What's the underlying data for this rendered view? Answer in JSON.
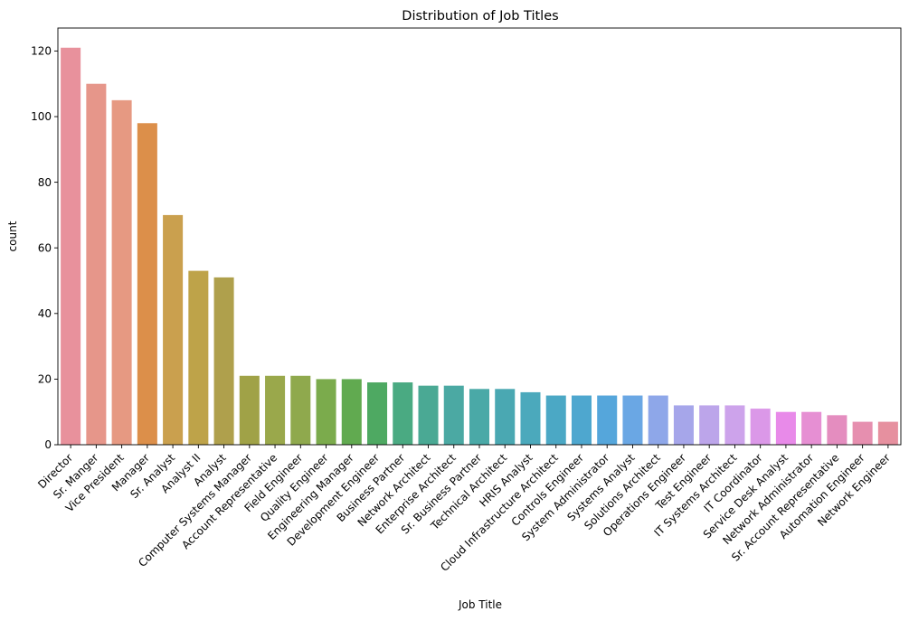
{
  "chart_data": {
    "type": "bar",
    "title": "Distribution of Job Titles",
    "xlabel": "Job Title",
    "ylabel": "count",
    "ylim": [
      0,
      127
    ],
    "yticks": [
      0,
      20,
      40,
      60,
      80,
      100,
      120
    ],
    "grid": false,
    "legend": "none",
    "categories": [
      "Director",
      "Sr. Manger",
      "Vice President",
      "Manager",
      "Sr. Analyst",
      "Analyst II",
      "Analyst",
      "Computer Systems Manager",
      "Account Representative",
      "Field Engineer",
      "Quality Engineer",
      "Engineering Manager",
      "Development Engineer",
      "Business Partner",
      "Network Architect",
      "Enterprise Architect",
      "Sr. Business Partner",
      "Technical Architect",
      "HRIS Analyst",
      "Cloud Infrastructure Architect",
      "Controls Engineer",
      "System Administrator",
      "Systems Analyst",
      "Solutions Architect",
      "Operations Engineer",
      "Test Engineer",
      "IT Systems Architect",
      "IT Coordinator",
      "Service Desk Analyst",
      "Network Administrator",
      "Sr. Account Representative",
      "Automation Engineer",
      "Network Engineer"
    ],
    "values": [
      121,
      110,
      105,
      98,
      70,
      53,
      51,
      21,
      21,
      21,
      20,
      20,
      19,
      19,
      18,
      18,
      17,
      17,
      16,
      15,
      15,
      15,
      15,
      15,
      12,
      12,
      12,
      11,
      10,
      10,
      9,
      7,
      7
    ],
    "colors": [
      "#e8919c",
      "#e6968a",
      "#e69982",
      "#dc8f4a",
      "#caa04e",
      "#bea349",
      "#afa04c",
      "#a0a247",
      "#9aa84b",
      "#8fa94d",
      "#7bab4c",
      "#61aa50",
      "#4ea962",
      "#4aaa82",
      "#4aa994",
      "#4ba9a3",
      "#4aa9a7",
      "#4aa8b2",
      "#4ba9bc",
      "#4ba8c5",
      "#4ea7cf",
      "#55a6db",
      "#6aa7e4",
      "#8ea7e9",
      "#a6a6ea",
      "#bca5ea",
      "#cda3eb",
      "#db98e8",
      "#e88ae9",
      "#e68fd3",
      "#e48dbf",
      "#e68faf",
      "#e6909f"
    ]
  }
}
